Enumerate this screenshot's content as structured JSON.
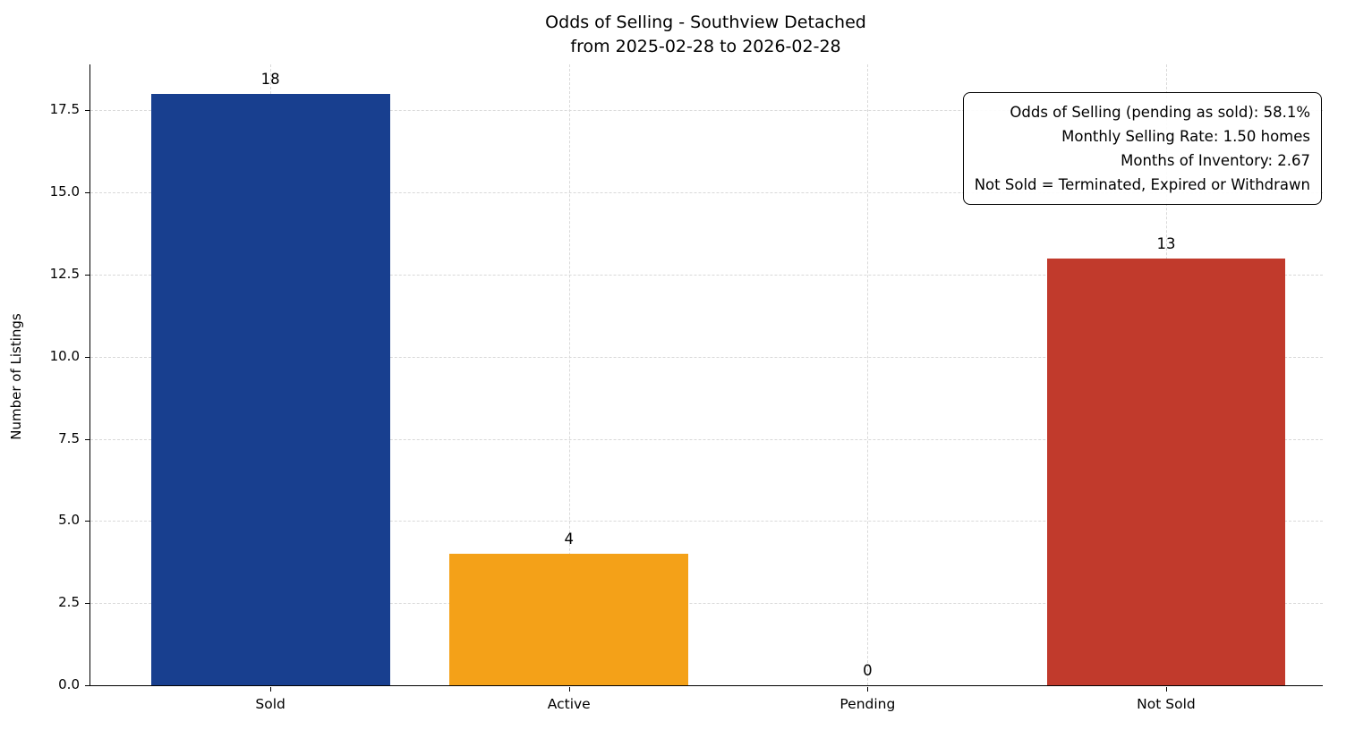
{
  "chart_data": {
    "type": "bar",
    "title": "Odds of Selling - Southview Detached",
    "subtitle": "from 2025-02-28 to 2026-02-28",
    "ylabel": "Number of Listings",
    "xlabel": "",
    "categories": [
      "Sold",
      "Active",
      "Pending",
      "Not Sold"
    ],
    "values": [
      18,
      4,
      0,
      13
    ],
    "bar_colors": [
      "#183f8f",
      "#f4a118",
      null,
      "#c13a2c"
    ],
    "value_labels": [
      "18",
      "4",
      "0",
      "13"
    ],
    "ylim": [
      0,
      18.9
    ],
    "yticks": [
      0.0,
      2.5,
      5.0,
      7.5,
      10.0,
      12.5,
      15.0,
      17.5
    ],
    "grid": true,
    "annotation_lines": [
      "Odds of Selling (pending as sold): 58.1%",
      "Monthly Selling Rate: 1.50 homes",
      "Months of Inventory: 2.67",
      "Not Sold = Terminated, Expired or Withdrawn"
    ]
  }
}
